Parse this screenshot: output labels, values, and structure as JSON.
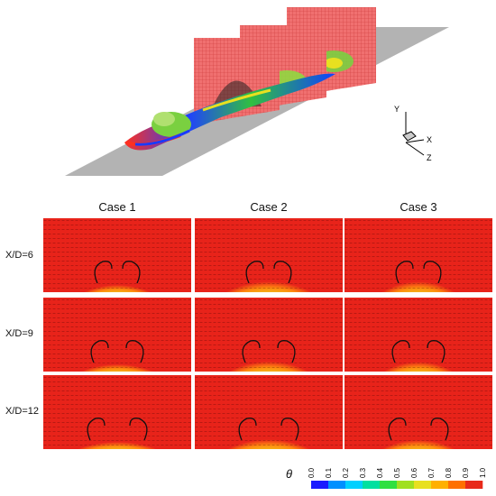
{
  "cases": [
    "Case 1",
    "Case 2",
    "Case 3"
  ],
  "rows": [
    "X/D=6",
    "X/D=9",
    "X/D=12"
  ],
  "axes_triad": {
    "y": "Y",
    "x": "X",
    "z": "Z"
  },
  "colorbar": {
    "symbol": "θ",
    "ticks": [
      "0.0",
      "0.1",
      "0.2",
      "0.3",
      "0.4",
      "0.5",
      "0.6",
      "0.7",
      "0.8",
      "0.9",
      "1.0"
    ]
  },
  "colors": {
    "background_field": "#e8231a",
    "colormap": [
      "#1a1aff",
      "#0090ff",
      "#00d0ff",
      "#00e0a0",
      "#30e040",
      "#a0e020",
      "#e8e020",
      "#ffb000",
      "#ff7000",
      "#e82a1a"
    ]
  }
}
